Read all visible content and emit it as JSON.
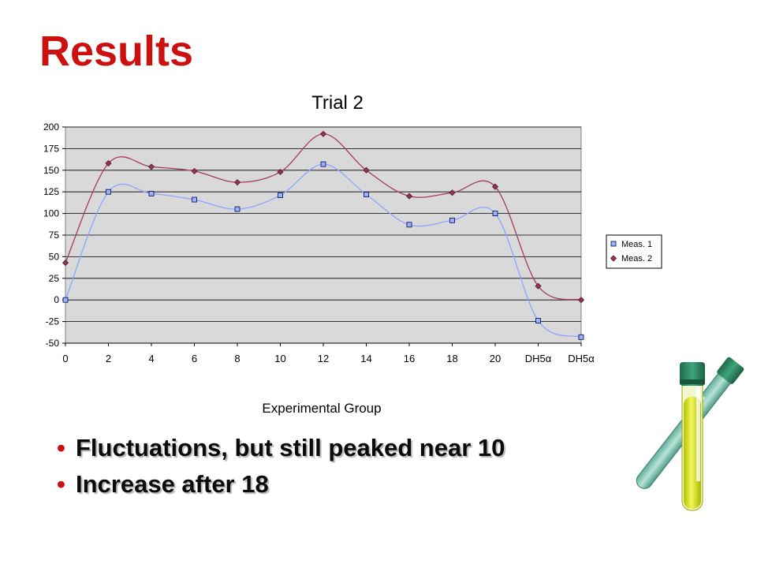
{
  "slide": {
    "title": "Results",
    "bullets": [
      "Fluctuations, but still peaked near 10",
      "Increase after 18"
    ]
  },
  "colors": {
    "title": "#cc1010",
    "bullet_marker": "#cc1010",
    "plot_background": "#d9d9d9",
    "series1_line": "#8ea4ff",
    "series1_marker": "#9cb4ee",
    "series2_line": "#a33c5a",
    "series2_marker": "#993355"
  },
  "decoration": {
    "image": "test-tubes-illustration"
  },
  "chart_data": {
    "type": "line",
    "title": "Trial 2",
    "xlabel": "Experimental Group",
    "ylabel": "",
    "categories": [
      "0",
      "2",
      "4",
      "6",
      "8",
      "10",
      "12",
      "14",
      "16",
      "18",
      "20",
      "DH5α",
      "DH5α"
    ],
    "series": [
      {
        "name": "Meas. 1",
        "marker": "square",
        "values": [
          0,
          125,
          123,
          116,
          105,
          121,
          157,
          122,
          87,
          92,
          100,
          -24,
          -43
        ]
      },
      {
        "name": "Meas. 2",
        "marker": "diamond",
        "values": [
          43,
          158,
          154,
          149,
          136,
          148,
          192,
          150,
          120,
          124,
          131,
          16,
          0
        ]
      }
    ],
    "ylim": [
      -50,
      200
    ],
    "yticks": [
      "-50",
      "-25",
      "0",
      "25",
      "50",
      "75",
      "100",
      "125",
      "150",
      "175",
      "200"
    ],
    "grid": true,
    "smoothed": true,
    "legend_position": "right"
  }
}
